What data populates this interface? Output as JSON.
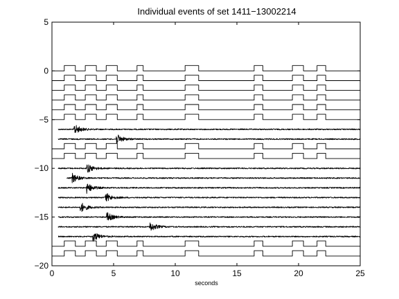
{
  "chart_data": {
    "type": "line",
    "title": "Individual events of set 1411−13002214",
    "xlabel": "seconds",
    "ylabel": "",
    "xlim": [
      0,
      25
    ],
    "ylim": [
      -20,
      5
    ],
    "x_ticks": [
      0,
      5,
      10,
      15,
      20,
      25
    ],
    "y_ticks": [
      5,
      0,
      -5,
      -10,
      -15,
      -20
    ],
    "x_tick_labels": [
      "0",
      "5",
      "10",
      "15",
      "20",
      "25"
    ],
    "y_tick_labels": [
      "5",
      "0",
      "−5",
      "−10",
      "−15",
      "−20"
    ],
    "grid": false,
    "legend": "none",
    "trace_spacing": 1,
    "series": [
      {
        "offset": 0,
        "kind": "square",
        "event_time": null
      },
      {
        "offset": -1,
        "kind": "square",
        "event_time": null
      },
      {
        "offset": -2,
        "kind": "square",
        "event_time": null
      },
      {
        "offset": -3,
        "kind": "square",
        "event_time": null
      },
      {
        "offset": -4,
        "kind": "square",
        "event_time": null
      },
      {
        "offset": -5,
        "kind": "square",
        "event_time": null
      },
      {
        "offset": -6,
        "kind": "noise",
        "event_time": 1.8,
        "extent": [
          0.5,
          25
        ]
      },
      {
        "offset": -7,
        "kind": "noise",
        "event_time": 5.2,
        "extent": [
          0.5,
          25
        ]
      },
      {
        "offset": -8,
        "kind": "square",
        "event_time": null
      },
      {
        "offset": -9,
        "kind": "square",
        "event_time": null
      },
      {
        "offset": -10,
        "kind": "noise",
        "event_time": 2.8,
        "extent": [
          0.5,
          25
        ]
      },
      {
        "offset": -11,
        "kind": "noise",
        "event_time": 1.6,
        "extent": [
          1.2,
          25
        ]
      },
      {
        "offset": -12,
        "kind": "noise",
        "event_time": 2.8,
        "extent": [
          0.5,
          25
        ]
      },
      {
        "offset": -13,
        "kind": "noise",
        "event_time": 4.3,
        "extent": [
          0.5,
          25
        ]
      },
      {
        "offset": -14,
        "kind": "noise",
        "event_time": 2.3,
        "extent": [
          0.5,
          25
        ]
      },
      {
        "offset": -15,
        "kind": "noise",
        "event_time": 4.4,
        "extent": [
          0.5,
          25
        ]
      },
      {
        "offset": -16,
        "kind": "noise",
        "event_time": 7.9,
        "extent": [
          0.5,
          25
        ]
      },
      {
        "offset": -17,
        "kind": "noise",
        "event_time": 3.3,
        "extent": [
          0.5,
          25
        ]
      },
      {
        "offset": -18,
        "kind": "square",
        "event_time": null
      },
      {
        "offset": -19,
        "kind": "square",
        "event_time": null
      }
    ]
  }
}
